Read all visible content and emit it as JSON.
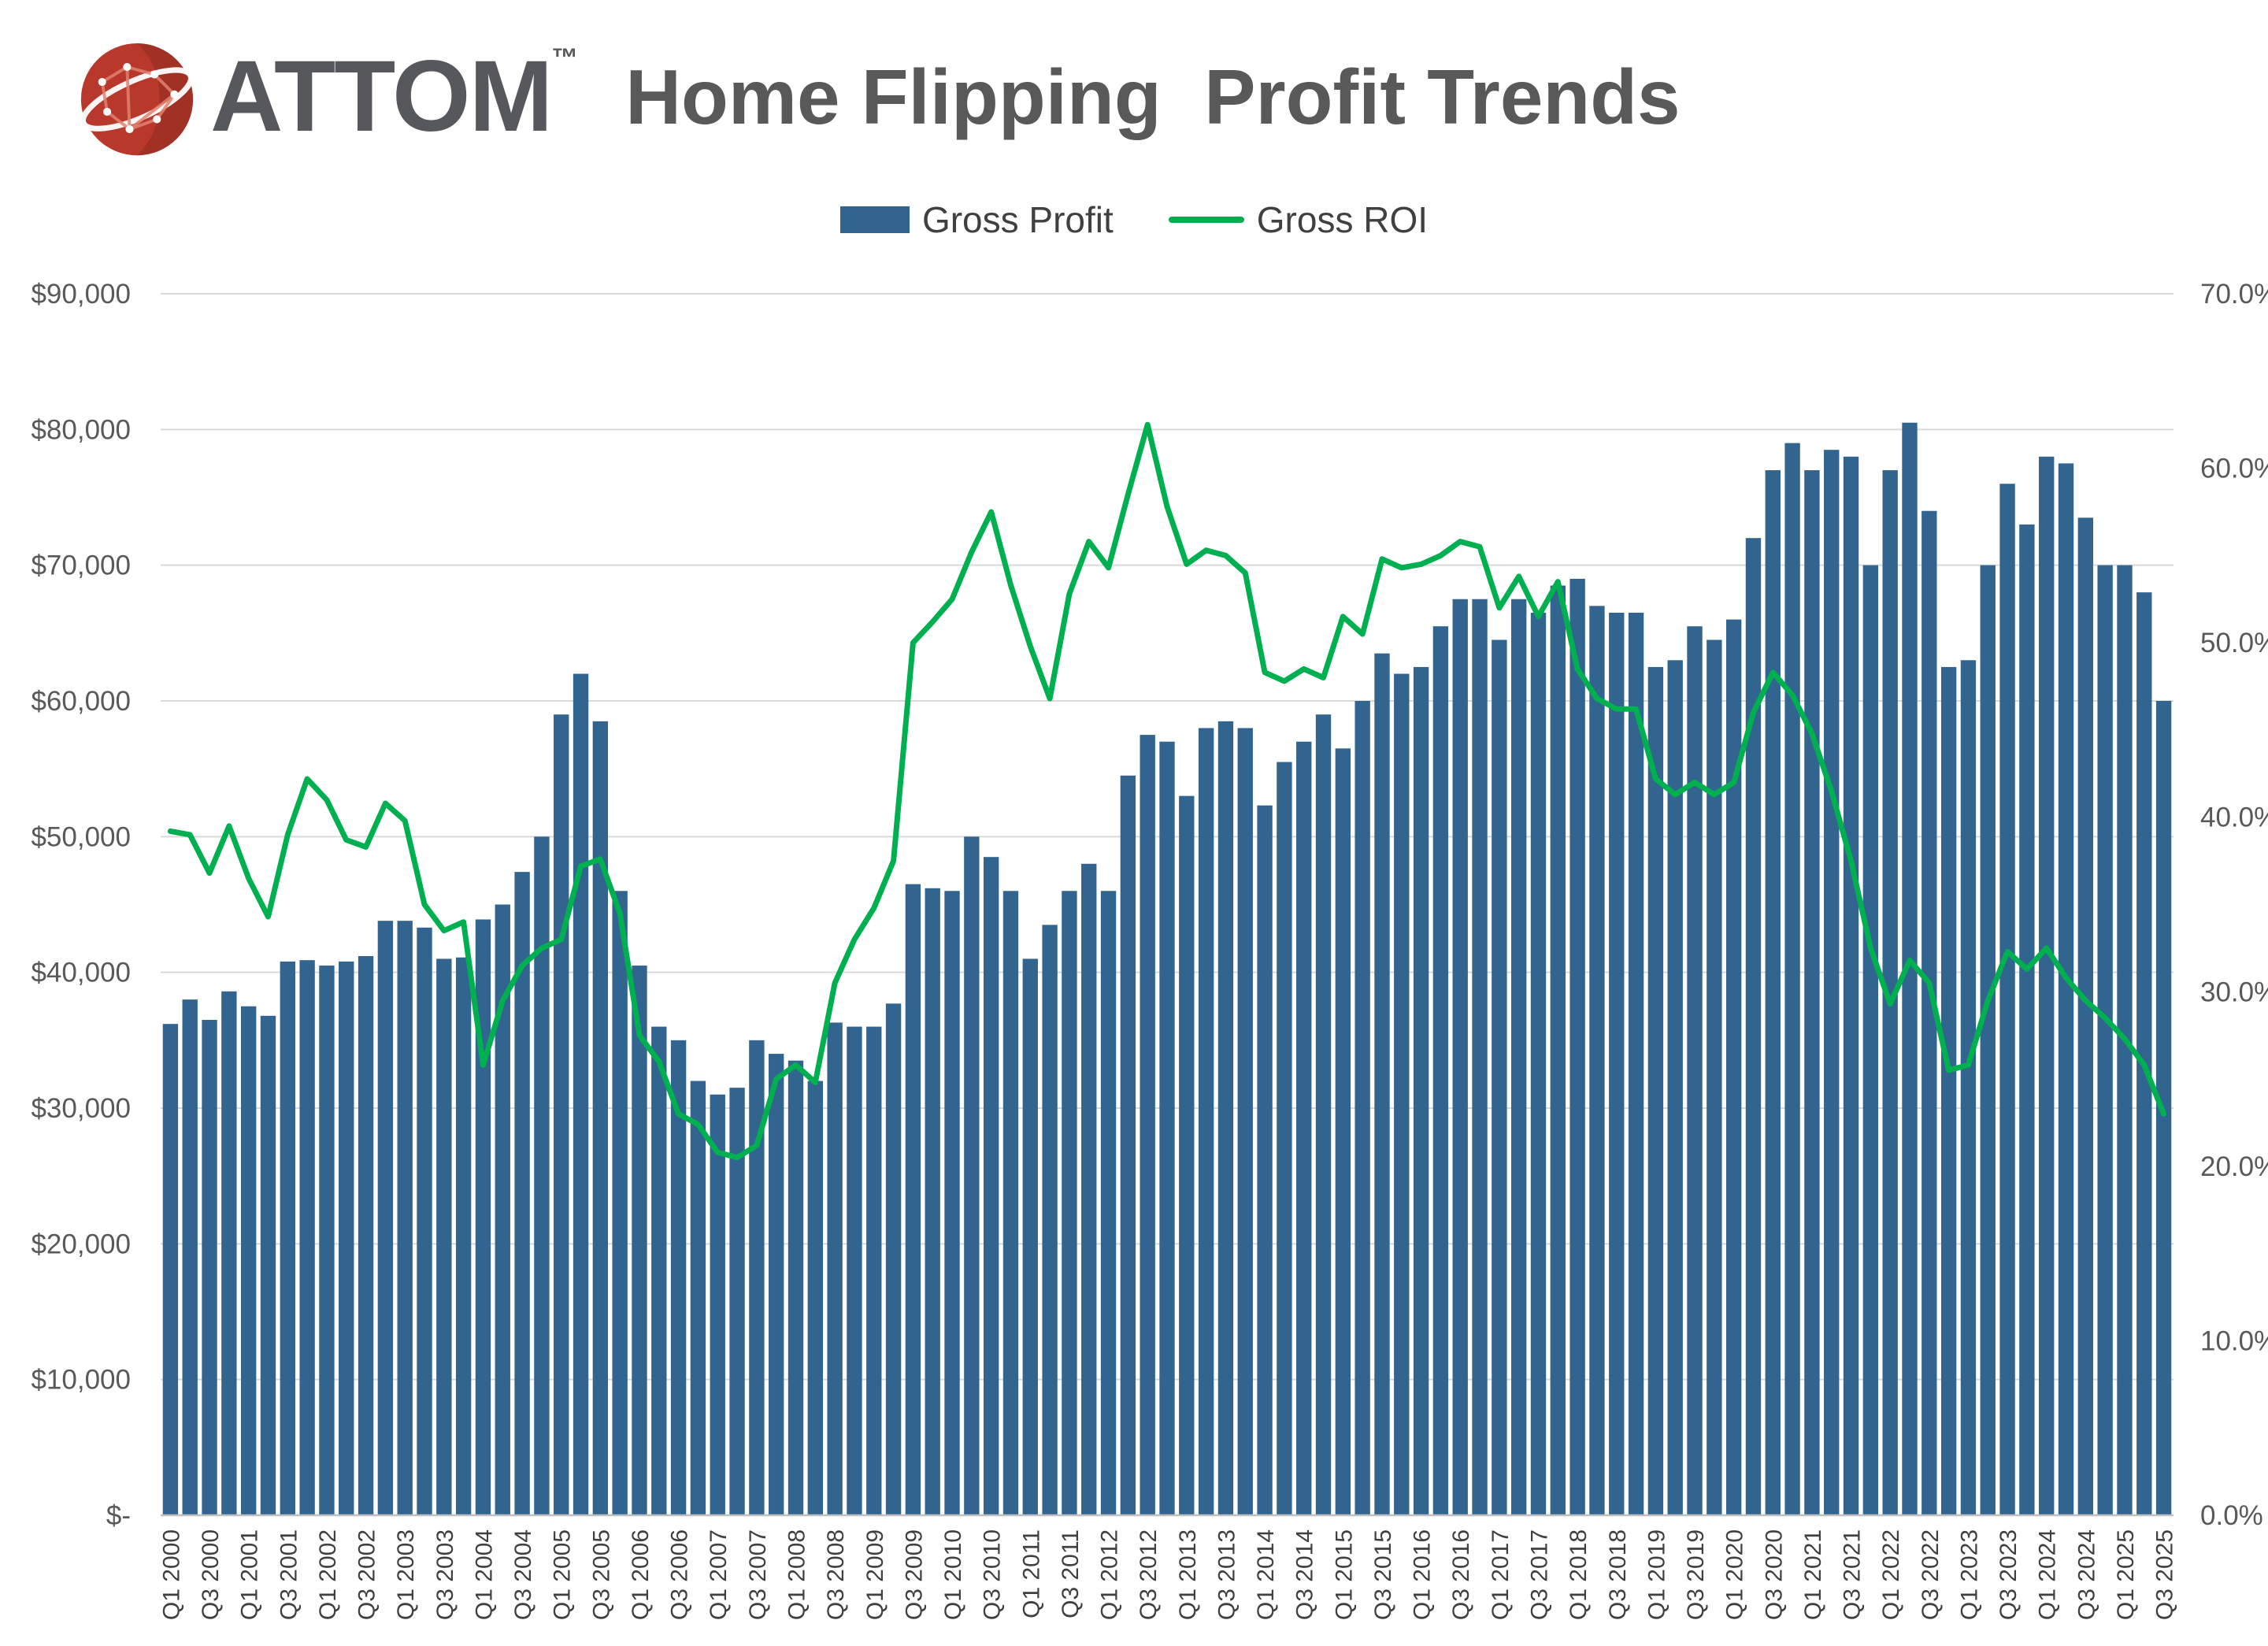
{
  "header": {
    "brand": "ATTOM",
    "trademark": "™",
    "title": "Home Flipping  Profit Trends"
  },
  "legend": {
    "items": [
      {
        "label": "Gross Profit",
        "type": "bar",
        "color": "#31648F"
      },
      {
        "label": "Gross ROI",
        "type": "line",
        "color": "#00B050"
      }
    ]
  },
  "chart_data": {
    "type": "bar+line",
    "title": "Home Flipping  Profit Trends",
    "grid": "horizontal",
    "legend_position": "top",
    "x_tick_every": 2,
    "categories": [
      "Q1 2000",
      "Q2 2000",
      "Q3 2000",
      "Q4 2000",
      "Q1 2001",
      "Q2 2001",
      "Q3 2001",
      "Q4 2001",
      "Q1 2002",
      "Q2 2002",
      "Q3 2002",
      "Q4 2002",
      "Q1 2003",
      "Q2 2003",
      "Q3 2003",
      "Q4 2003",
      "Q1 2004",
      "Q2 2004",
      "Q3 2004",
      "Q4 2004",
      "Q1 2005",
      "Q2 2005",
      "Q3 2005",
      "Q4 2005",
      "Q1 2006",
      "Q2 2006",
      "Q3 2006",
      "Q4 2006",
      "Q1 2007",
      "Q2 2007",
      "Q3 2007",
      "Q4 2007",
      "Q1 2008",
      "Q2 2008",
      "Q3 2008",
      "Q4 2008",
      "Q1 2009",
      "Q2 2009",
      "Q3 2009",
      "Q4 2009",
      "Q1 2010",
      "Q2 2010",
      "Q3 2010",
      "Q4 2010",
      "Q1 2011",
      "Q2 2011",
      "Q3 2011",
      "Q4 2011",
      "Q1 2012",
      "Q2 2012",
      "Q3 2012",
      "Q4 2012",
      "Q1 2013",
      "Q2 2013",
      "Q3 2013",
      "Q4 2013",
      "Q1 2014",
      "Q2 2014",
      "Q3 2014",
      "Q4 2014",
      "Q1 2015",
      "Q2 2015",
      "Q3 2015",
      "Q4 2015",
      "Q1 2016",
      "Q2 2016",
      "Q3 2016",
      "Q4 2016",
      "Q1 2017",
      "Q2 2017",
      "Q3 2017",
      "Q4 2017",
      "Q1 2018",
      "Q2 2018",
      "Q3 2018",
      "Q4 2018",
      "Q1 2019",
      "Q2 2019",
      "Q3 2019",
      "Q4 2019",
      "Q1 2020",
      "Q2 2020",
      "Q3 2020",
      "Q4 2020",
      "Q1 2021",
      "Q2 2021",
      "Q3 2021",
      "Q4 2021",
      "Q1 2022",
      "Q2 2022",
      "Q3 2022",
      "Q4 2022",
      "Q1 2023",
      "Q2 2023",
      "Q3 2023",
      "Q4 2023",
      "Q1 2024",
      "Q2 2024",
      "Q3 2024",
      "Q4 2024",
      "Q1 2025",
      "Q2 2025",
      "Q3 2025"
    ],
    "series": [
      {
        "name": "Gross Profit",
        "type": "bar",
        "axis": "left",
        "color": "#31648F",
        "values": [
          36200,
          38000,
          36500,
          38600,
          37500,
          36800,
          40800,
          40900,
          40500,
          40800,
          41200,
          43800,
          43800,
          43300,
          41000,
          41100,
          43900,
          45000,
          47400,
          50000,
          59000,
          62000,
          58500,
          46000,
          40500,
          36000,
          35000,
          32000,
          31000,
          31500,
          35000,
          34000,
          33500,
          32000,
          36300,
          36000,
          36000,
          37700,
          46500,
          46200,
          46000,
          50000,
          48500,
          46000,
          41000,
          43500,
          46000,
          48000,
          46000,
          54500,
          57500,
          57000,
          53000,
          58000,
          58500,
          58000,
          52300,
          55500,
          57000,
          59000,
          56500,
          60000,
          63500,
          62000,
          62500,
          65500,
          67500,
          67500,
          64500,
          67500,
          66500,
          68500,
          69000,
          67000,
          66500,
          66500,
          62500,
          63000,
          65500,
          64500,
          66000,
          72000,
          77000,
          79000,
          77000,
          78500,
          78000,
          70000,
          77000,
          80500,
          74000,
          62500,
          63000,
          70000,
          76000,
          73000,
          78000,
          77500,
          73500,
          70000,
          70000,
          68000,
          60000
        ]
      },
      {
        "name": "Gross ROI",
        "type": "line",
        "axis": "right",
        "color": "#00B050",
        "values": [
          39.2,
          39.0,
          36.8,
          39.5,
          36.5,
          34.3,
          39.0,
          42.2,
          41.0,
          38.7,
          38.3,
          40.8,
          39.8,
          35.0,
          33.5,
          34.0,
          25.8,
          29.5,
          31.5,
          32.5,
          33.0,
          37.2,
          37.6,
          34.5,
          27.5,
          26.0,
          23.0,
          22.4,
          20.8,
          20.5,
          21.2,
          25.0,
          25.8,
          24.8,
          30.5,
          33.0,
          34.8,
          37.5,
          50.0,
          51.2,
          52.5,
          55.2,
          57.5,
          53.3,
          49.8,
          46.8,
          52.8,
          55.8,
          54.3,
          58.5,
          62.5,
          57.8,
          54.5,
          55.3,
          55.0,
          54.0,
          48.3,
          47.8,
          48.5,
          48.0,
          51.5,
          50.5,
          54.8,
          54.3,
          54.5,
          55.0,
          55.8,
          55.5,
          52.0,
          53.8,
          51.5,
          53.5,
          48.5,
          46.8,
          46.2,
          46.2,
          42.2,
          41.3,
          42.0,
          41.3,
          42.0,
          46.0,
          48.3,
          47.0,
          44.8,
          41.5,
          37.5,
          32.5,
          29.3,
          31.8,
          30.5,
          25.5,
          25.8,
          29.5,
          32.3,
          31.3,
          32.5,
          30.8,
          29.5,
          28.5,
          27.3,
          25.8,
          23.0
        ]
      }
    ],
    "left_axis": {
      "min": 0,
      "max": 90000,
      "tick_step": 10000,
      "labels": [
        "$-",
        "$10,000",
        "$20,000",
        "$30,000",
        "$40,000",
        "$50,000",
        "$60,000",
        "$70,000",
        "$80,000",
        "$90,000"
      ]
    },
    "right_axis": {
      "min": 0,
      "max": 70,
      "tick_step": 10,
      "labels": [
        "0.0%",
        "10.0%",
        "20.0%",
        "30.0%",
        "40.0%",
        "50.0%",
        "60.0%",
        "70.0%"
      ]
    },
    "colors": {
      "grid": "#D9D9D9",
      "axis_line": "#BFBFBF",
      "axis_text": "#595959",
      "x_text": "#404040"
    }
  }
}
